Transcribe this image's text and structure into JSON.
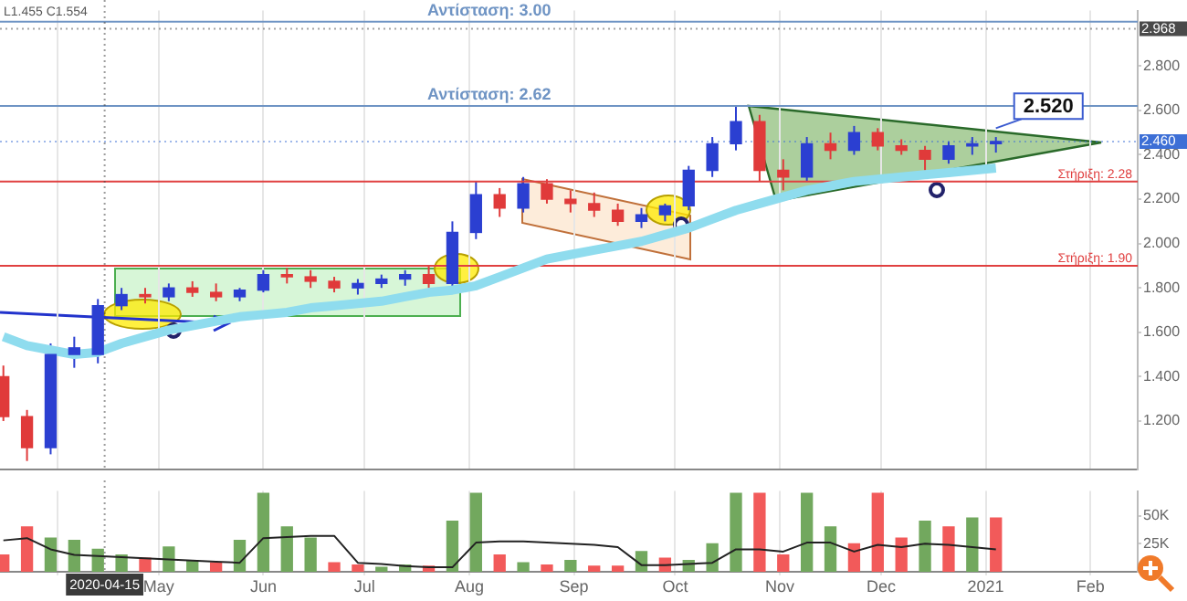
{
  "chart_data": [
    {
      "type": "candlestick",
      "x": [
        "2020-03-16",
        "2020-03-23",
        "2020-03-30",
        "2020-04-06",
        "2020-04-13",
        "2020-04-20",
        "2020-04-27",
        "2020-05-04",
        "2020-05-11",
        "2020-05-18",
        "2020-05-25",
        "2020-06-01",
        "2020-06-08",
        "2020-06-15",
        "2020-06-22",
        "2020-06-29",
        "2020-07-06",
        "2020-07-13",
        "2020-07-20",
        "2020-07-27",
        "2020-08-03",
        "2020-08-10",
        "2020-08-17",
        "2020-08-24",
        "2020-08-31",
        "2020-09-07",
        "2020-09-14",
        "2020-09-21",
        "2020-09-28",
        "2020-10-05",
        "2020-10-12",
        "2020-10-19",
        "2020-10-26",
        "2020-11-02",
        "2020-11-09",
        "2020-11-16",
        "2020-11-23",
        "2020-11-30",
        "2020-12-07",
        "2020-12-14",
        "2020-12-21",
        "2020-12-28",
        "2021-01-04"
      ],
      "ohlc": [
        [
          1.4,
          1.45,
          1.2,
          1.22
        ],
        [
          1.22,
          1.25,
          1.02,
          1.08
        ],
        [
          1.08,
          1.55,
          1.05,
          1.5
        ],
        [
          1.5,
          1.58,
          1.44,
          1.53
        ],
        [
          1.5,
          1.75,
          1.46,
          1.72
        ],
        [
          1.72,
          1.8,
          1.7,
          1.77
        ],
        [
          1.77,
          1.8,
          1.73,
          1.76
        ],
        [
          1.76,
          1.82,
          1.74,
          1.8
        ],
        [
          1.8,
          1.83,
          1.76,
          1.78
        ],
        [
          1.78,
          1.82,
          1.74,
          1.76
        ],
        [
          1.76,
          1.8,
          1.74,
          1.79
        ],
        [
          1.79,
          1.88,
          1.78,
          1.86
        ],
        [
          1.86,
          1.89,
          1.82,
          1.85
        ],
        [
          1.85,
          1.88,
          1.8,
          1.83
        ],
        [
          1.83,
          1.85,
          1.78,
          1.8
        ],
        [
          1.8,
          1.84,
          1.77,
          1.82
        ],
        [
          1.82,
          1.86,
          1.8,
          1.84
        ],
        [
          1.84,
          1.88,
          1.81,
          1.86
        ],
        [
          1.86,
          1.9,
          1.8,
          1.82
        ],
        [
          1.82,
          2.1,
          1.8,
          2.05
        ],
        [
          2.05,
          2.28,
          2.02,
          2.22
        ],
        [
          2.22,
          2.25,
          2.12,
          2.16
        ],
        [
          2.16,
          2.3,
          2.14,
          2.27
        ],
        [
          2.27,
          2.29,
          2.18,
          2.2
        ],
        [
          2.2,
          2.24,
          2.14,
          2.18
        ],
        [
          2.18,
          2.23,
          2.12,
          2.15
        ],
        [
          2.15,
          2.18,
          2.08,
          2.1
        ],
        [
          2.1,
          2.16,
          2.07,
          2.13
        ],
        [
          2.13,
          2.18,
          2.1,
          2.17
        ],
        [
          2.17,
          2.35,
          2.15,
          2.33
        ],
        [
          2.33,
          2.48,
          2.3,
          2.45
        ],
        [
          2.45,
          2.62,
          2.42,
          2.55
        ],
        [
          2.55,
          2.58,
          2.28,
          2.33
        ],
        [
          2.33,
          2.38,
          2.24,
          2.3
        ],
        [
          2.3,
          2.48,
          2.28,
          2.45
        ],
        [
          2.45,
          2.5,
          2.38,
          2.42
        ],
        [
          2.42,
          2.53,
          2.4,
          2.5
        ],
        [
          2.5,
          2.52,
          2.42,
          2.44
        ],
        [
          2.44,
          2.47,
          2.4,
          2.42
        ],
        [
          2.42,
          2.44,
          2.33,
          2.38
        ],
        [
          2.38,
          2.46,
          2.36,
          2.44
        ],
        [
          2.44,
          2.48,
          2.4,
          2.45
        ],
        [
          2.45,
          2.48,
          2.41,
          2.46
        ]
      ],
      "colors": [
        "#e03a3a",
        "#e03a3a",
        "#2b3fd1",
        "#2b3fd1",
        "#2b3fd1",
        "#2b3fd1",
        "#e03a3a",
        "#2b3fd1",
        "#e03a3a",
        "#e03a3a",
        "#2b3fd1",
        "#2b3fd1",
        "#e03a3a",
        "#e03a3a",
        "#e03a3a",
        "#2b3fd1",
        "#2b3fd1",
        "#2b3fd1",
        "#e03a3a",
        "#2b3fd1",
        "#2b3fd1",
        "#e03a3a",
        "#2b3fd1",
        "#e03a3a",
        "#e03a3a",
        "#e03a3a",
        "#e03a3a",
        "#2b3fd1",
        "#2b3fd1",
        "#2b3fd1",
        "#2b3fd1",
        "#2b3fd1",
        "#e03a3a",
        "#e03a3a",
        "#2b3fd1",
        "#e03a3a",
        "#2b3fd1",
        "#e03a3a",
        "#e03a3a",
        "#e03a3a",
        "#2b3fd1",
        "#2b3fd1",
        "#2b3fd1"
      ],
      "series": [
        {
          "type": "line",
          "color": "#8fdcee",
          "values": [
            1.58,
            1.54,
            1.52,
            1.5,
            1.51,
            1.55,
            1.58,
            1.61,
            1.63,
            1.65,
            1.67,
            1.68,
            1.69,
            1.71,
            1.72,
            1.73,
            1.74,
            1.76,
            1.78,
            1.79,
            1.81,
            1.85,
            1.89,
            1.93,
            1.95,
            1.97,
            1.99,
            2.01,
            2.04,
            2.07,
            2.11,
            2.15,
            2.18,
            2.21,
            2.24,
            2.26,
            2.28,
            2.29,
            2.3,
            2.31,
            2.32,
            2.33,
            2.34
          ]
        }
      ],
      "xlim": [
        "2020-03-15",
        "2021-02-15"
      ],
      "xticks": [
        "2020-04-01",
        "2020-05-01",
        "2020-06-01",
        "2020-07-01",
        "2020-08-01",
        "2020-09-01",
        "2020-10-01",
        "2020-11-01",
        "2020-12-01",
        "2021-01-01",
        "2021-02-01"
      ],
      "ylim": [
        0.98,
        3.05
      ],
      "yticks": [
        {
          "value": 1.2,
          "label": "1.200"
        },
        {
          "value": 1.4,
          "label": "1.400"
        },
        {
          "value": 1.6,
          "label": "1.600"
        },
        {
          "value": 1.8,
          "label": "1.800"
        },
        {
          "value": 2.0,
          "label": "2.000"
        },
        {
          "value": 2.2,
          "label": "2.200"
        },
        {
          "value": 2.4,
          "label": "2.400"
        },
        {
          "value": 2.6,
          "label": "2.600"
        },
        {
          "value": 2.8,
          "label": "2.800"
        }
      ],
      "tick_labels": "y",
      "grid": "x",
      "ref_lines": [
        {
          "axis": "y",
          "value": 3.0,
          "label": "Αντίσταση: 3.00",
          "color": "#6f94c4",
          "line_style": "solid"
        },
        {
          "axis": "y",
          "value": 2.62,
          "label": "Αντίσταση: 2.62",
          "color": "#6f94c4",
          "line_style": "solid"
        },
        {
          "axis": "y",
          "value": 2.28,
          "label": "Στήριξη: 2.28",
          "color": "#e04040",
          "line_style": "solid"
        },
        {
          "axis": "y",
          "value": 1.9,
          "label": "Στήριξη: 1.90",
          "color": "#e04040",
          "line_style": "solid"
        },
        {
          "axis": "y",
          "value": 2.968,
          "label": "2.968",
          "color": "#4a4a4a",
          "line_style": "dotted"
        },
        {
          "axis": "y",
          "value": 2.46,
          "label": "2.460",
          "color": "#3d6fd6",
          "line_style": "dotted"
        },
        {
          "axis": "x",
          "value": "2020-04-15",
          "color": "#3a3a3a",
          "line_style": "dotted"
        }
      ],
      "annotations": [
        "L1.455 C1.554",
        {
          "text": "2.520",
          "x": "2021-01-04",
          "y": 2.52
        }
      ]
    },
    {
      "type": "bar",
      "x": [
        "2020-03-16",
        "2020-03-23",
        "2020-03-30",
        "2020-04-06",
        "2020-04-13",
        "2020-04-20",
        "2020-04-27",
        "2020-05-04",
        "2020-05-11",
        "2020-05-18",
        "2020-05-25",
        "2020-06-01",
        "2020-06-08",
        "2020-06-15",
        "2020-06-22",
        "2020-06-29",
        "2020-07-06",
        "2020-07-13",
        "2020-07-20",
        "2020-07-27",
        "2020-08-03",
        "2020-08-10",
        "2020-08-17",
        "2020-08-24",
        "2020-08-31",
        "2020-09-07",
        "2020-09-14",
        "2020-09-21",
        "2020-09-28",
        "2020-10-05",
        "2020-10-12",
        "2020-10-19",
        "2020-10-26",
        "2020-11-02",
        "2020-11-09",
        "2020-11-16",
        "2020-11-23",
        "2020-11-30",
        "2020-12-07",
        "2020-12-14",
        "2020-12-21",
        "2020-12-28",
        "2021-01-04"
      ],
      "colors": [
        "#f25a5a",
        "#f25a5a",
        "#72a85e",
        "#72a85e",
        "#72a85e",
        "#72a85e",
        "#f25a5a",
        "#72a85e",
        "#72a85e",
        "#f25a5a",
        "#72a85e",
        "#72a85e",
        "#72a85e",
        "#72a85e",
        "#f25a5a",
        "#f25a5a",
        "#72a85e",
        "#72a85e",
        "#f25a5a",
        "#72a85e",
        "#72a85e",
        "#f25a5a",
        "#72a85e",
        "#f25a5a",
        "#72a85e",
        "#f25a5a",
        "#f25a5a",
        "#72a85e",
        "#f25a5a",
        "#72a85e",
        "#72a85e",
        "#72a85e",
        "#f25a5a",
        "#f25a5a",
        "#72a85e",
        "#72a85e",
        "#f25a5a",
        "#f25a5a",
        "#f25a5a",
        "#72a85e",
        "#f25a5a",
        "#72a85e",
        "#f25a5a"
      ],
      "values": [
        15000,
        40000,
        30000,
        28000,
        20000,
        15000,
        12000,
        22000,
        10000,
        8000,
        28000,
        70000,
        40000,
        30000,
        8000,
        6000,
        4000,
        6000,
        5000,
        45000,
        70000,
        15000,
        8000,
        6000,
        10000,
        5000,
        5000,
        18000,
        12000,
        10000,
        25000,
        70000,
        70000,
        15000,
        70000,
        40000,
        25000,
        70000,
        30000,
        45000,
        40000,
        48000,
        48000
      ],
      "series": [
        {
          "type": "line",
          "color": "#222222",
          "values": [
            28000,
            30000,
            20000,
            15000,
            14000,
            13000,
            12000,
            11000,
            10000,
            9000,
            8000,
            30000,
            31000,
            32000,
            32000,
            8000,
            7000,
            5000,
            4000,
            4000,
            26000,
            27000,
            27000,
            26000,
            25000,
            24000,
            22000,
            6000,
            6000,
            7000,
            8000,
            20000,
            20000,
            18000,
            26000,
            26000,
            18000,
            24000,
            22000,
            25000,
            24000,
            22000,
            20000
          ]
        }
      ],
      "xlim": [
        "2020-03-15",
        "2021-02-15"
      ],
      "xticks": [
        {
          "value": "2020-04-01",
          "label": null
        },
        {
          "value": "2020-05-01",
          "label": "May"
        },
        {
          "value": "2020-06-01",
          "label": "Jun"
        },
        {
          "value": "2020-07-01",
          "label": "Jul"
        },
        {
          "value": "2020-08-01",
          "label": "Aug"
        },
        {
          "value": "2020-09-01",
          "label": "Sep"
        },
        {
          "value": "2020-10-01",
          "label": "Oct"
        },
        {
          "value": "2020-11-01",
          "label": "Nov"
        },
        {
          "value": "2020-12-01",
          "label": "Dec"
        },
        {
          "value": "2021-01-01",
          "label": "2021"
        },
        {
          "value": "2021-02-01",
          "label": "Feb"
        }
      ],
      "ylim": [
        0,
        72000
      ],
      "yticks": [
        {
          "value": 25000,
          "label": "25K"
        },
        {
          "value": 50000,
          "label": "50K"
        }
      ],
      "grid": "x",
      "ref_lines": [
        {
          "axis": "x",
          "value": "2020-04-15",
          "label": "2020-04-15",
          "color": "#3a3a3a",
          "line_style": "dotted"
        }
      ]
    }
  ]
}
